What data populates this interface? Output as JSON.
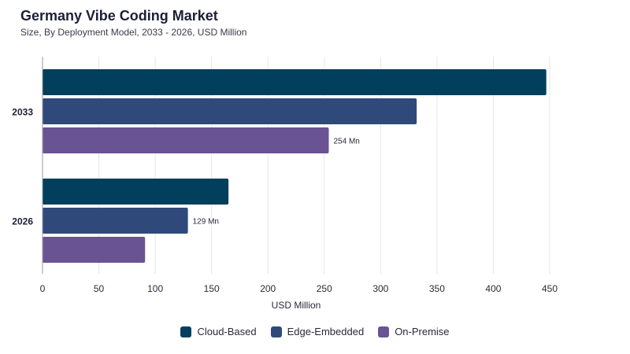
{
  "chart_data": {
    "type": "bar",
    "orientation": "horizontal",
    "title": "Germany Vibe Coding Market",
    "subtitle": "Size, By Deployment Model, 2033 - 2026, USD Million",
    "xlabel": "USD Million",
    "ylabel": "",
    "xlim": [
      0,
      450
    ],
    "xticks": [
      0,
      50,
      100,
      150,
      200,
      250,
      300,
      350,
      400,
      450
    ],
    "grid": true,
    "legend_position": "bottom",
    "categories": [
      "2033",
      "2026"
    ],
    "series": [
      {
        "name": "Cloud-Based",
        "color": "#023f5c",
        "values": [
          447,
          165
        ]
      },
      {
        "name": "Edge-Embedded",
        "color": "#2f4a7a",
        "values": [
          332,
          129
        ]
      },
      {
        "name": "On-Premise",
        "color": "#6a5392",
        "values": [
          254,
          91
        ]
      }
    ],
    "data_labels": [
      {
        "category": "2033",
        "series": "On-Premise",
        "text": "254 Mn"
      },
      {
        "category": "2026",
        "series": "Edge-Embedded",
        "text": "129 Mn"
      }
    ]
  }
}
